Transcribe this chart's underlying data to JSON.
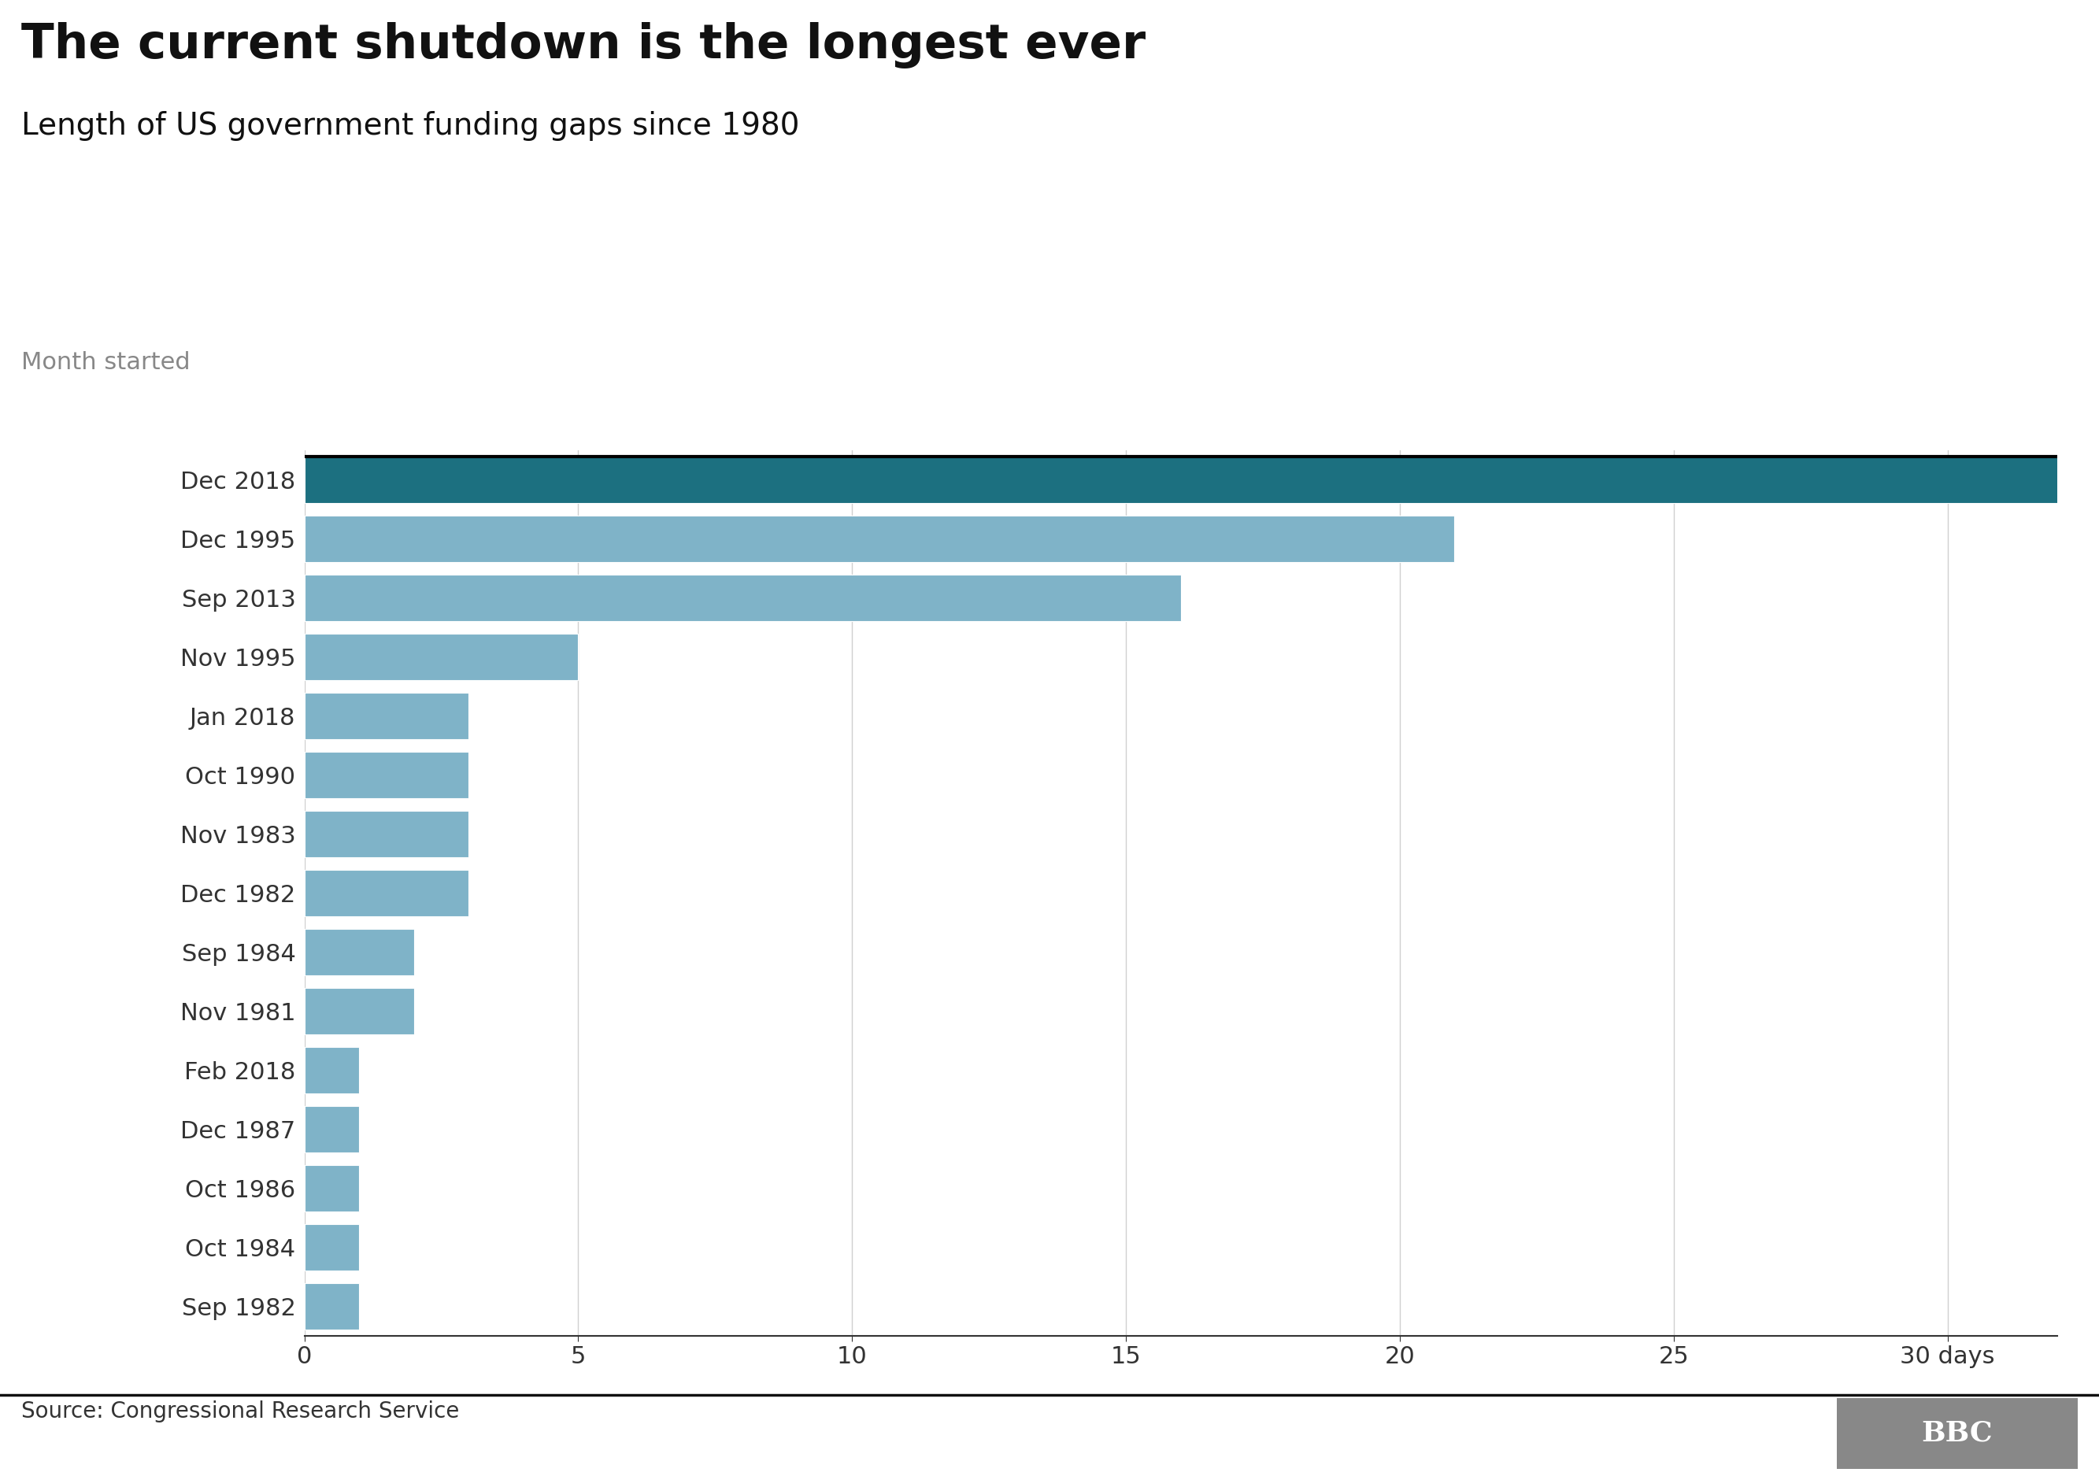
{
  "title": "The current shutdown is the longest ever",
  "subtitle": "Length of US government funding gaps since 1980",
  "ylabel_label": "Month started",
  "source": "Source: Congressional Research Service",
  "categories": [
    "Dec 2018",
    "Dec 1995",
    "Sep 2013",
    "Nov 1995",
    "Jan 2018",
    "Oct 1990",
    "Nov 1983",
    "Dec 1982",
    "Sep 1984",
    "Nov 1981",
    "Feb 2018",
    "Dec 1987",
    "Oct 1986",
    "Oct 1984",
    "Sep 1982"
  ],
  "values": [
    35,
    21,
    16,
    5,
    3,
    3,
    3,
    3,
    2,
    2,
    1,
    1,
    1,
    1,
    1
  ],
  "colors": [
    "#1c7080",
    "#7fb3c8",
    "#7fb3c8",
    "#7fb3c8",
    "#7fb3c8",
    "#7fb3c8",
    "#7fb3c8",
    "#7fb3c8",
    "#7fb3c8",
    "#7fb3c8",
    "#7fb3c8",
    "#7fb3c8",
    "#7fb3c8",
    "#7fb3c8",
    "#7fb3c8"
  ],
  "xlim": [
    0,
    32
  ],
  "xticks": [
    0,
    5,
    10,
    15,
    20,
    25,
    30
  ],
  "xtick_labels": [
    "0",
    "5",
    "10",
    "15",
    "20",
    "25",
    "30 days"
  ],
  "background_color": "#ffffff",
  "grid_color": "#d0d0d0",
  "title_fontsize": 44,
  "subtitle_fontsize": 28,
  "month_label_fontsize": 22,
  "tick_fontsize": 22,
  "source_fontsize": 20,
  "bar_height": 0.78,
  "highlight_color": "#1c7080",
  "normal_color": "#7fb3c8"
}
